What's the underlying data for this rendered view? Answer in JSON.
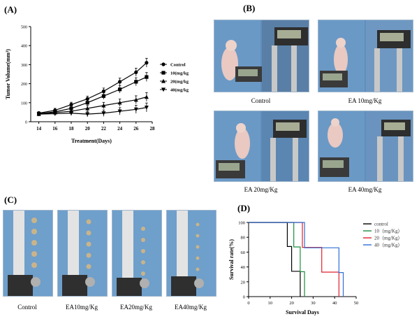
{
  "panels": {
    "a": {
      "letter": "(A)",
      "chart_data": {
        "type": "line",
        "xlabel": "Treatment(Days)",
        "ylabel": "Tumor Volume(mm³)",
        "x_ticks": [
          14,
          16,
          18,
          20,
          22,
          24,
          26,
          28
        ],
        "y_ticks": [
          0,
          100,
          200,
          300,
          400,
          500
        ],
        "xlim": [
          13,
          28
        ],
        "ylim": [
          0,
          500
        ],
        "legend_position": "right",
        "series": [
          {
            "name": "Control",
            "marker": "circle",
            "x": [
              14,
              16,
              18,
              20,
              22,
              24,
              26,
              27.3
            ],
            "y": [
              45,
              60,
              90,
              120,
              160,
              210,
              260,
              310
            ]
          },
          {
            "name": "10(mg/kg)",
            "marker": "square",
            "x": [
              14,
              16,
              18,
              20,
              22,
              24,
              26,
              27.3
            ],
            "y": [
              42,
              52,
              70,
              100,
              135,
              170,
              210,
              235
            ]
          },
          {
            "name": "20(mg/kg)",
            "marker": "triangle",
            "x": [
              14,
              16,
              18,
              20,
              22,
              24,
              26,
              27.3
            ],
            "y": [
              40,
              48,
              55,
              70,
              85,
              100,
              115,
              130
            ]
          },
          {
            "name": "40(mg/kg)",
            "marker": "tri-down",
            "x": [
              14,
              16,
              18,
              20,
              22,
              24,
              26,
              27.3
            ],
            "y": [
              40,
              42,
              45,
              40,
              45,
              55,
              65,
              75
            ]
          }
        ]
      }
    },
    "b": {
      "letter": "(B)",
      "photos": [
        {
          "caption": "Control"
        },
        {
          "caption": "EA 10mg/Kg"
        },
        {
          "caption": "EA 20mg/Kg"
        },
        {
          "caption": "EA 40mg/Kg"
        }
      ]
    },
    "c": {
      "letter": "(C)",
      "photos": [
        {
          "caption": "Control"
        },
        {
          "caption": "EA10mg/Kg"
        },
        {
          "caption": "EA20mg/Kg"
        },
        {
          "caption": "EA40mg/Kg"
        }
      ]
    },
    "d": {
      "letter": "(D)",
      "chart_data": {
        "type": "line",
        "step": true,
        "xlabel": "Survival Days",
        "ylabel": "Survival rate(%)",
        "x_ticks": [
          0,
          10,
          20,
          30,
          40,
          50
        ],
        "y_ticks": [
          0,
          20,
          40,
          60,
          80,
          100
        ],
        "xlim": [
          0,
          50
        ],
        "ylim": [
          0,
          100
        ],
        "legend_position": "right",
        "series": [
          {
            "name": "control",
            "color": "#000000",
            "x": [
              0,
              18,
              18,
              20,
              20,
              24,
              24
            ],
            "y": [
              100,
              100,
              66.7,
              66.7,
              33.3,
              33.3,
              0
            ]
          },
          {
            "name": "10（mg/Kg）",
            "color": "#1a8f3c",
            "x": [
              0,
              21,
              21,
              24,
              24,
              26,
              26
            ],
            "y": [
              100,
              100,
              66.7,
              66.7,
              33.3,
              33.3,
              0
            ]
          },
          {
            "name": "20（mg/Kg）",
            "color": "#e0202a",
            "x": [
              0,
              25,
              25,
              34,
              34,
              42,
              42
            ],
            "y": [
              100,
              100,
              66.7,
              66.7,
              33.3,
              33.3,
              0
            ]
          },
          {
            "name": "40（mg/Kg）",
            "color": "#2f6fd6",
            "x": [
              0,
              26,
              26,
              42,
              42,
              44,
              44
            ],
            "y": [
              100,
              100,
              66.7,
              66.7,
              33.3,
              33.3,
              0
            ]
          }
        ]
      }
    }
  }
}
